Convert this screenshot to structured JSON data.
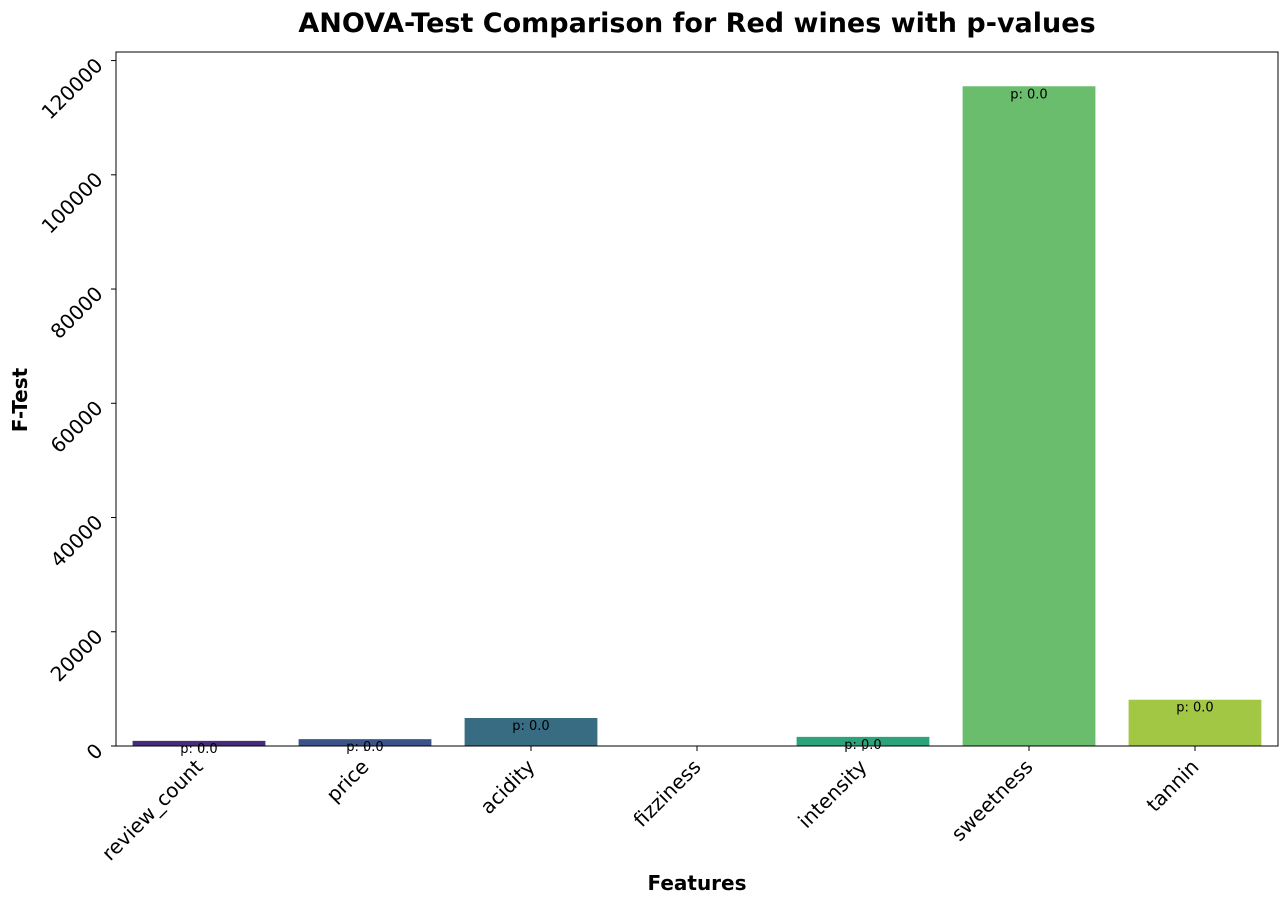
{
  "chart_data": {
    "type": "bar",
    "title": "ANOVA-Test Comparison for Red wines with p-values",
    "xlabel": "Features",
    "ylabel": "F-Test",
    "categories": [
      "review_count",
      "price",
      "acidity",
      "fizziness",
      "intensity",
      "sweetness",
      "tannin"
    ],
    "values": [
      900,
      1200,
      4900,
      30,
      1600,
      115500,
      8100
    ],
    "bar_labels": [
      "p: 0.0",
      "p: 0.0",
      "p: 0.0",
      "",
      "p: 0.0",
      "p: 0.0",
      "p: 0.0"
    ],
    "colors": [
      "#472d7b",
      "#3b528b",
      "#386c82",
      "#21918c",
      "#2ca37b",
      "#6abd6d",
      "#a2c745"
    ],
    "ylim": [
      0,
      121500
    ],
    "yticks": [
      0,
      20000,
      40000,
      60000,
      80000,
      100000,
      120000
    ],
    "ytick_labels": [
      "0",
      "20000",
      "40000",
      "60000",
      "80000",
      "100000",
      "120000"
    ],
    "grid": false,
    "legend": "none"
  }
}
